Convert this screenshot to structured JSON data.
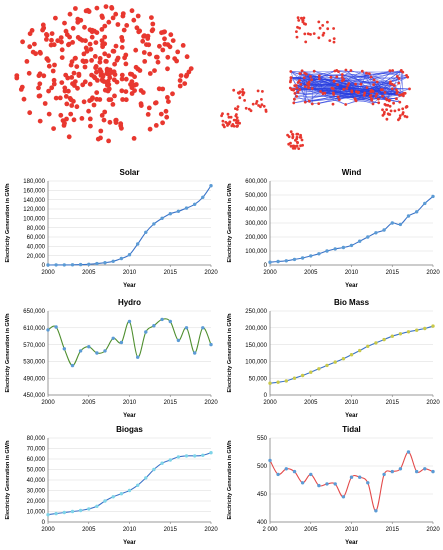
{
  "colors": {
    "node": "#e8372f",
    "edge": "#2a3fe0",
    "axis": "#7f7f7f",
    "grid": "#d9d9d9",
    "line_blue": "#3a73c8",
    "marker_blue": "#5b9bd5",
    "line_red": "#e34a4a",
    "line_green": "#4f8f2f",
    "marker_yellow": "#c9c94a",
    "marker_cyan": "#7fd4e8",
    "text": "#000000"
  },
  "chart_data": [
    {
      "type": "line",
      "title": "Solar",
      "xlabel": "Year",
      "ylabel": "Electricity Generation in GWh",
      "xlim": [
        2000,
        2020
      ],
      "xticks": [
        "2000",
        "2005",
        "2010",
        "2015",
        "2020"
      ],
      "ylim": [
        0,
        180000
      ],
      "yticks": [
        "0",
        "20,000",
        "40,000",
        "60,000",
        "80,000",
        "100,000",
        "120,000",
        "140,000",
        "160,000",
        "180,000"
      ],
      "line_color": "line_blue",
      "marker_color": "marker_blue",
      "x": [
        2000,
        2001,
        2002,
        2003,
        2004,
        2005,
        2006,
        2007,
        2008,
        2009,
        2010,
        2011,
        2012,
        2013,
        2014,
        2015,
        2016,
        2017,
        2018,
        2019,
        2020
      ],
      "values": [
        100,
        200,
        300,
        500,
        800,
        1500,
        3000,
        5000,
        8000,
        14000,
        22000,
        45000,
        70000,
        88000,
        100000,
        110000,
        115000,
        122000,
        130000,
        145000,
        170000
      ]
    },
    {
      "type": "line",
      "title": "Wind",
      "xlabel": "Year",
      "ylabel": "Electricity Generation in GWh",
      "xlim": [
        2000,
        2020
      ],
      "xticks": [
        "2000",
        "2005",
        "2010",
        "2015",
        "2020"
      ],
      "ylim": [
        0,
        600000
      ],
      "yticks": [
        "0",
        "100,000",
        "200,000",
        "300,000",
        "400,000",
        "500,000",
        "600,000"
      ],
      "line_color": "line_blue",
      "marker_color": "marker_blue",
      "x": [
        2000,
        2001,
        2002,
        2003,
        2004,
        2005,
        2006,
        2007,
        2008,
        2009,
        2010,
        2011,
        2012,
        2013,
        2014,
        2015,
        2016,
        2017,
        2018,
        2019,
        2020
      ],
      "values": [
        20000,
        25000,
        30000,
        40000,
        50000,
        65000,
        80000,
        100000,
        115000,
        125000,
        140000,
        170000,
        200000,
        230000,
        250000,
        300000,
        290000,
        350000,
        380000,
        440000,
        490000
      ]
    },
    {
      "type": "line",
      "title": "Hydro",
      "xlabel": "Year",
      "ylabel": "Electricity Generation in GWh",
      "xlim": [
        2000,
        2020
      ],
      "xticks": [
        "2000",
        "2005",
        "2010",
        "2015",
        "2020"
      ],
      "ylim": [
        450000,
        650000
      ],
      "yticks": [
        "450,000",
        "490,000",
        "530,000",
        "570,000",
        "610,000",
        "650,000"
      ],
      "line_color": "line_green",
      "marker_color": "marker_blue",
      "x": [
        2000,
        2001,
        2002,
        2003,
        2004,
        2005,
        2006,
        2007,
        2008,
        2009,
        2010,
        2011,
        2012,
        2013,
        2014,
        2015,
        2016,
        2017,
        2018,
        2019,
        2020
      ],
      "values": [
        605000,
        612000,
        560000,
        520000,
        555000,
        565000,
        550000,
        555000,
        585000,
        575000,
        625000,
        540000,
        600000,
        615000,
        630000,
        625000,
        580000,
        610000,
        550000,
        610000,
        570000
      ]
    },
    {
      "type": "line",
      "title": "Bio Mass",
      "xlabel": "Year",
      "ylabel": "Electricity Generation in GWh",
      "xlim": [
        2000,
        2020
      ],
      "xticks": [
        "2000",
        "2005",
        "2010",
        "2015",
        "2020"
      ],
      "ylim": [
        0,
        250000
      ],
      "yticks": [
        "0",
        "50,000",
        "100,000",
        "150,000",
        "200,000",
        "250,000"
      ],
      "line_color": "line_blue",
      "marker_color": "marker_yellow",
      "x": [
        2000,
        2001,
        2002,
        2003,
        2004,
        2005,
        2006,
        2007,
        2008,
        2009,
        2010,
        2011,
        2012,
        2013,
        2014,
        2015,
        2016,
        2017,
        2018,
        2019,
        2020
      ],
      "values": [
        35000,
        38000,
        42000,
        50000,
        58000,
        68000,
        78000,
        88000,
        98000,
        108000,
        120000,
        132000,
        145000,
        155000,
        165000,
        175000,
        182000,
        188000,
        193000,
        198000,
        205000
      ]
    },
    {
      "type": "line",
      "title": "Biogas",
      "xlabel": "Year",
      "ylabel": "Electricity Generation in GWh",
      "xlim": [
        2000,
        2020
      ],
      "xticks": [
        "2000",
        "2005",
        "2010",
        "2015",
        "2020"
      ],
      "ylim": [
        0,
        80000
      ],
      "yticks": [
        "0",
        "10,000",
        "20,000",
        "30,000",
        "40,000",
        "50,000",
        "60,000",
        "70,000",
        "80,000"
      ],
      "line_color": "line_blue",
      "marker_color": "marker_cyan",
      "x": [
        2000,
        2001,
        2002,
        2003,
        2004,
        2005,
        2006,
        2007,
        2008,
        2009,
        2010,
        2011,
        2012,
        2013,
        2014,
        2015,
        2016,
        2017,
        2018,
        2019,
        2020
      ],
      "values": [
        7000,
        8000,
        9000,
        10000,
        11000,
        12500,
        15000,
        20000,
        24000,
        27000,
        30000,
        35000,
        42000,
        50000,
        56000,
        59000,
        62000,
        63000,
        63000,
        63500,
        66000
      ]
    },
    {
      "type": "line",
      "title": "Tidal",
      "xlabel": "Year",
      "ylabel": "Electricity Generation in GWh",
      "xlim": [
        2000,
        2020
      ],
      "xticks": [
        "2 000",
        "2005",
        "2010",
        "2015",
        "2020"
      ],
      "ylim": [
        400,
        550
      ],
      "yticks": [
        "400",
        "450",
        "500",
        "550"
      ],
      "line_color": "line_red",
      "marker_color": "marker_blue",
      "x": [
        2000,
        2001,
        2002,
        2003,
        2004,
        2005,
        2006,
        2007,
        2008,
        2009,
        2010,
        2011,
        2012,
        2013,
        2014,
        2015,
        2016,
        2017,
        2018,
        2019,
        2020
      ],
      "values": [
        510,
        485,
        495,
        490,
        470,
        485,
        465,
        468,
        468,
        445,
        480,
        480,
        470,
        420,
        485,
        490,
        495,
        525,
        490,
        495,
        490
      ]
    }
  ]
}
